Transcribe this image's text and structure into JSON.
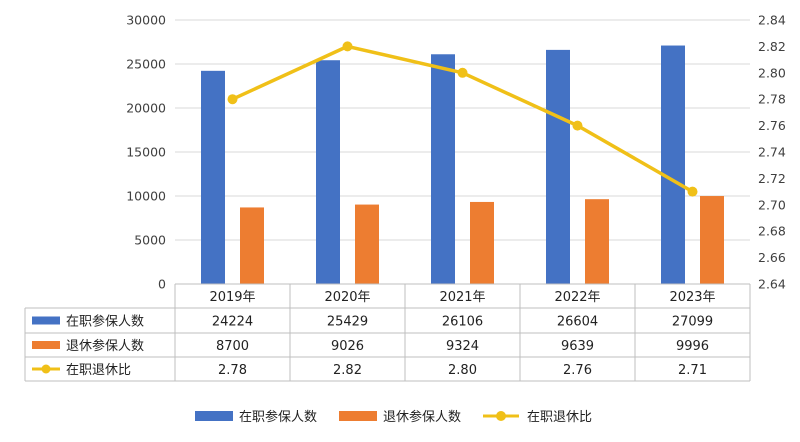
{
  "chart_data": {
    "type": "bar",
    "categories": [
      "2019年",
      "2020年",
      "2021年",
      "2022年",
      "2023年"
    ],
    "series": [
      {
        "name": "在职参保人数",
        "kind": "bar",
        "axis": "left",
        "color": "#4472c4",
        "values": [
          24224,
          25429,
          26106,
          26604,
          27099
        ]
      },
      {
        "name": "退休参保人数",
        "kind": "bar",
        "axis": "left",
        "color": "#ed7d31",
        "values": [
          8700,
          9026,
          9324,
          9639,
          9996
        ]
      },
      {
        "name": "在职退休比",
        "kind": "line",
        "axis": "right",
        "color": "#f0c018",
        "values": [
          2.78,
          2.82,
          2.8,
          2.76,
          2.71
        ]
      }
    ],
    "table_values": [
      [
        "24224",
        "25429",
        "26106",
        "26604",
        "27099"
      ],
      [
        "8700",
        "9026",
        "9324",
        "9639",
        "9996"
      ],
      [
        "2.78",
        "2.82",
        "2.80",
        "2.76",
        "2.71"
      ]
    ],
    "ylim_left": [
      0,
      30000
    ],
    "yticks_left": [
      0,
      5000,
      10000,
      15000,
      20000,
      25000,
      30000
    ],
    "ylim_right": [
      2.64,
      2.84
    ],
    "yticks_right": [
      "2.64",
      "2.66",
      "2.68",
      "2.70",
      "2.72",
      "2.74",
      "2.76",
      "2.78",
      "2.80",
      "2.82",
      "2.84"
    ],
    "grid": true,
    "data_table": true,
    "legend": {
      "position": "bottom",
      "items": [
        "在职参保人数",
        "退休参保人数",
        "在职退休比"
      ]
    }
  }
}
